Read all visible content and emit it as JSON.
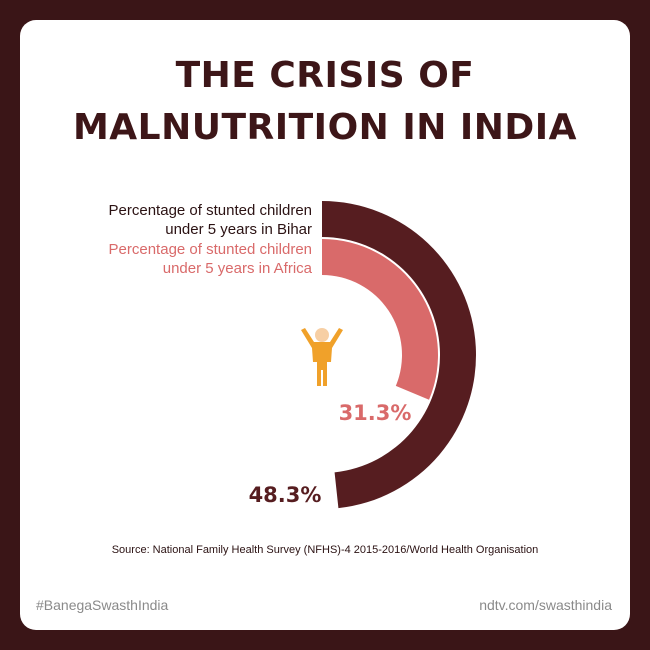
{
  "title": {
    "line1": "THE CRISIS OF",
    "line2": "MALNUTRITION IN INDIA"
  },
  "chart_data": {
    "type": "radial-bar",
    "unit": "%",
    "series": [
      {
        "name": "Percentage of stunted children under 5 years in Bihar",
        "name_line1": "Percentage of stunted children",
        "name_line2": "under 5 years in Bihar",
        "value": 48.3,
        "label": "48.3%",
        "color": "#561d20"
      },
      {
        "name": "Percentage of stunted children under 5 years in Africa",
        "name_line1": "Percentage of stunted children",
        "name_line2": "under 5 years in Africa",
        "value": 31.3,
        "label": "31.3%",
        "color": "#d96a6a"
      }
    ]
  },
  "icon": {
    "name": "child-figure-icon",
    "color": "#f0a12a",
    "head_color": "#f7cfa4"
  },
  "source": "Source: National Family Health Survey (NFHS)-4 2015-2016/World Health Organisation",
  "footer": {
    "hashtag": "#BanegaSwasthIndia",
    "website": "ndtv.com/swasthindia"
  },
  "colors": {
    "background": "#3a1517",
    "card": "#ffffff",
    "title": "#3d1618"
  }
}
